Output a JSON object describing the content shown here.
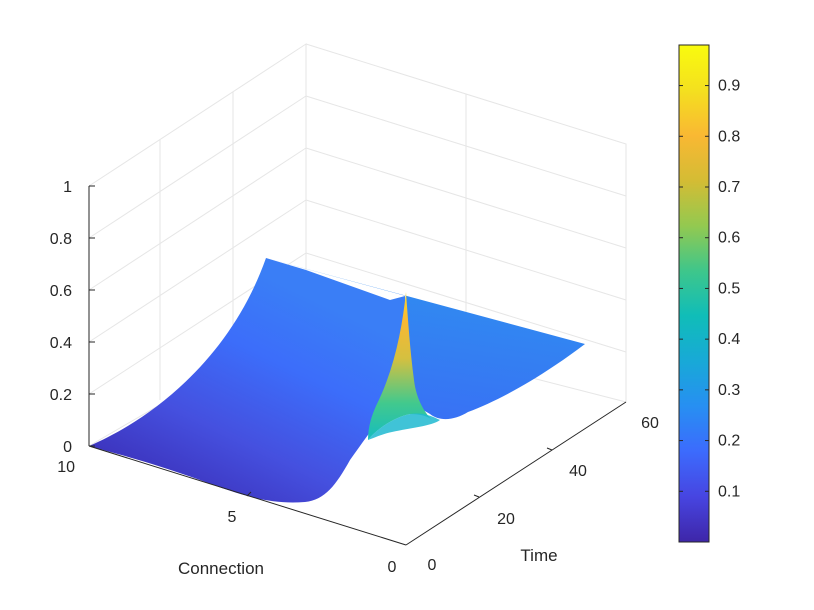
{
  "chart_data": {
    "type": "surface",
    "title": "",
    "xlabel": "Connection",
    "ylabel": "Time",
    "zlabel": "",
    "xlim": [
      0,
      10
    ],
    "ylim": [
      0,
      60
    ],
    "zlim": [
      0,
      1
    ],
    "x_ticks": [
      "0",
      "5",
      "10"
    ],
    "y_ticks": [
      "0",
      "20",
      "40",
      "60"
    ],
    "z_ticks": [
      "0",
      "0.2",
      "0.4",
      "0.6",
      "0.8",
      "1"
    ],
    "colorbar": {
      "colormap": "parula",
      "range": [
        0,
        0.98
      ],
      "ticks": [
        "0.1",
        "0.2",
        "0.3",
        "0.4",
        "0.5",
        "0.6",
        "0.7",
        "0.8",
        "0.9"
      ],
      "colors": [
        "#3e26a8",
        "#4745e1",
        "#3c6bfd",
        "#278ff2",
        "#18a9d7",
        "#10bdb8",
        "#3ec68b",
        "#93c950",
        "#d4bc34",
        "#f9b833",
        "#f4e01f",
        "#f9fb0e"
      ]
    },
    "surface": {
      "description_points": [
        {
          "connection": 0,
          "time": 0,
          "value": 0.0
        },
        {
          "connection": 10,
          "time": 0,
          "value": 0.0
        },
        {
          "connection": 10,
          "time": 60,
          "value": 0.24
        },
        {
          "connection": 0,
          "time": 60,
          "value": 0.28
        },
        {
          "connection": 2,
          "time": 30,
          "value": 0.98
        }
      ]
    },
    "grid": true
  }
}
